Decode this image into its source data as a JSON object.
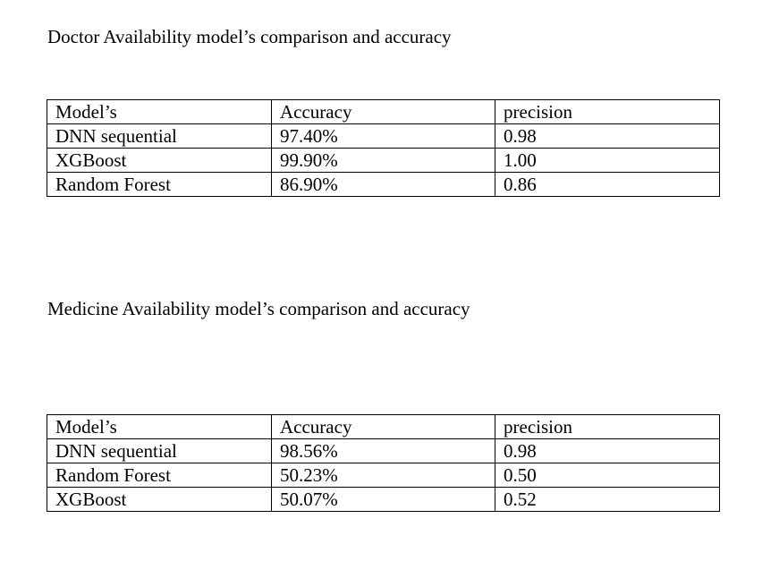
{
  "sections": [
    {
      "title": "Doctor Availability model’s comparison and accuracy",
      "table": {
        "headers": [
          "Model’s",
          "Accuracy",
          "precision"
        ],
        "rows": [
          [
            "DNN sequential",
            "97.40%",
            "0.98"
          ],
          [
            "XGBoost",
            "99.90%",
            "1.00"
          ],
          [
            "Random Forest",
            "86.90%",
            "0.86"
          ]
        ]
      }
    },
    {
      "title": "Medicine Availability model’s comparison and accuracy",
      "table": {
        "headers": [
          "Model’s",
          "Accuracy",
          "precision"
        ],
        "rows": [
          [
            "DNN sequential",
            "98.56%",
            "0.98"
          ],
          [
            "Random Forest",
            "50.23%",
            "0.50"
          ],
          [
            "XGBoost",
            "50.07%",
            "0.52"
          ]
        ]
      }
    }
  ]
}
